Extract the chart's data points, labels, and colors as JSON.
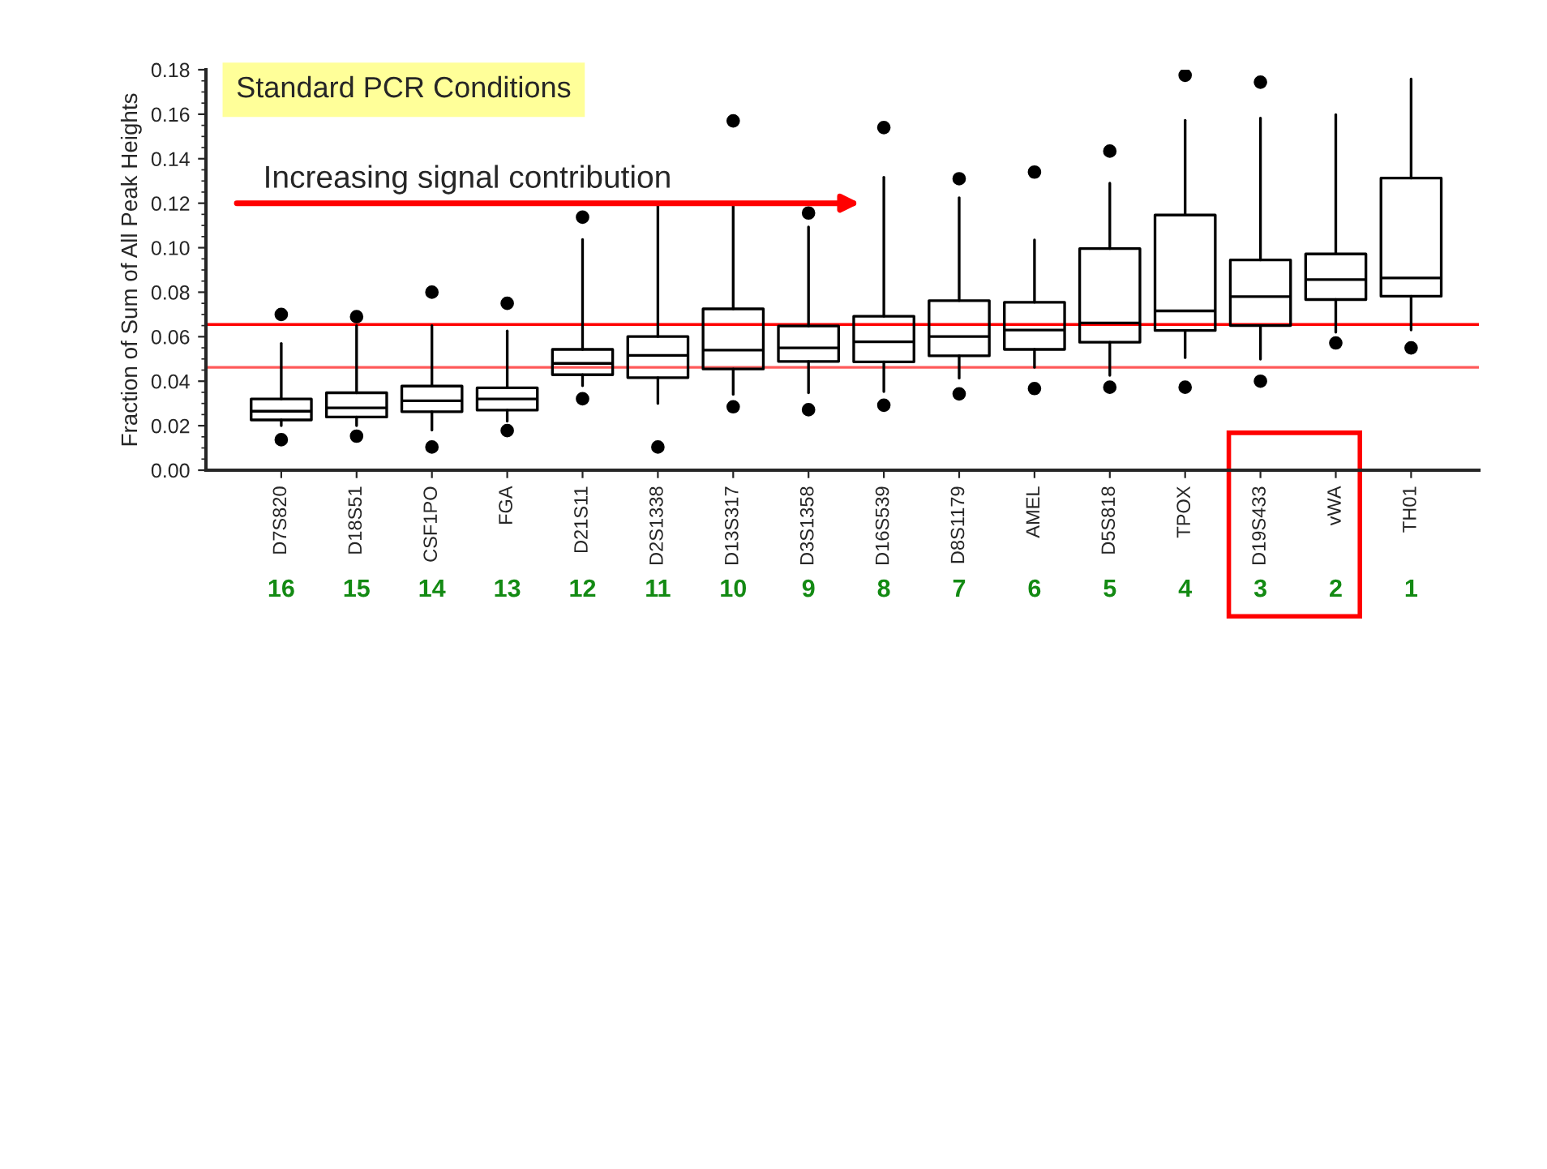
{
  "chart_data": {
    "type": "box",
    "title": "Standard PCR Conditions",
    "ylabel": "Fraction of Sum of All Peak Heights",
    "categories": [
      "D7S820",
      "D18S51",
      "CSF1PO",
      "FGA",
      "D21S11",
      "D2S1338",
      "D13S317",
      "D3S1358",
      "D16S539",
      "D8S1179",
      "AMEL",
      "D5S818",
      "TPOX",
      "D19S433",
      "vWA",
      "TH01"
    ],
    "boxes": [
      {
        "low": 0.02,
        "q1": 0.0226,
        "median": 0.0265,
        "q3": 0.032,
        "high": 0.057,
        "outliers": [
          0.0137,
          0.07
        ]
      },
      {
        "low": 0.02,
        "q1": 0.0239,
        "median": 0.028,
        "q3": 0.0348,
        "high": 0.065,
        "outliers": [
          0.0153,
          0.069
        ]
      },
      {
        "low": 0.018,
        "q1": 0.0263,
        "median": 0.0312,
        "q3": 0.0378,
        "high": 0.065,
        "outliers": [
          0.0104,
          0.08
        ]
      },
      {
        "low": 0.022,
        "q1": 0.027,
        "median": 0.032,
        "q3": 0.037,
        "high": 0.0626,
        "outliers": [
          0.0178,
          0.075
        ]
      },
      {
        "low": 0.038,
        "q1": 0.0429,
        "median": 0.048,
        "q3": 0.0543,
        "high": 0.1037,
        "outliers": [
          0.0321,
          0.1137
        ]
      },
      {
        "low": 0.03,
        "q1": 0.0416,
        "median": 0.0516,
        "q3": 0.0601,
        "high": 0.12,
        "outliers": [
          0.0104
        ]
      },
      {
        "low": 0.0341,
        "q1": 0.0455,
        "median": 0.054,
        "q3": 0.0725,
        "high": 0.12,
        "outliers": [
          0.0285,
          0.157
        ]
      },
      {
        "low": 0.0348,
        "q1": 0.0489,
        "median": 0.055,
        "q3": 0.0648,
        "high": 0.1093,
        "outliers": [
          0.0272,
          0.1156
        ]
      },
      {
        "low": 0.0353,
        "q1": 0.0487,
        "median": 0.0577,
        "q3": 0.0692,
        "high": 0.1317,
        "outliers": [
          0.0292,
          0.154
        ]
      },
      {
        "low": 0.0414,
        "q1": 0.0514,
        "median": 0.0601,
        "q3": 0.0762,
        "high": 0.1225,
        "outliers": [
          0.0343,
          0.131
        ]
      },
      {
        "low": 0.0462,
        "q1": 0.0543,
        "median": 0.063,
        "q3": 0.0755,
        "high": 0.1035,
        "outliers": [
          0.0367,
          0.134
        ]
      },
      {
        "low": 0.0426,
        "q1": 0.0575,
        "median": 0.0662,
        "q3": 0.0996,
        "high": 0.129,
        "outliers": [
          0.0373,
          0.1434
        ]
      },
      {
        "low": 0.0506,
        "q1": 0.0628,
        "median": 0.0716,
        "q3": 0.1147,
        "high": 0.1573,
        "outliers": [
          0.0373,
          0.1775
        ]
      },
      {
        "low": 0.0499,
        "q1": 0.065,
        "median": 0.078,
        "q3": 0.0945,
        "high": 0.1583,
        "outliers": [
          0.04,
          0.1744
        ]
      },
      {
        "low": 0.062,
        "q1": 0.0767,
        "median": 0.0857,
        "q3": 0.0972,
        "high": 0.1598,
        "outliers": [
          0.0572
        ]
      },
      {
        "low": 0.063,
        "q1": 0.0782,
        "median": 0.0864,
        "q3": 0.1313,
        "high": 0.1758,
        "outliers": [
          0.055
        ]
      }
    ],
    "ylim": [
      0,
      0.18
    ],
    "yticks": [
      {
        "value": 0,
        "label": "0.00"
      },
      {
        "value": 0.02,
        "label": "0.02"
      },
      {
        "value": 0.04,
        "label": "0.04"
      },
      {
        "value": 0.06,
        "label": "0.06"
      },
      {
        "value": 0.08,
        "label": "0.08"
      },
      {
        "value": 0.1,
        "label": "0.10"
      },
      {
        "value": 0.12,
        "label": "0.12"
      },
      {
        "value": 0.14,
        "label": "0.14"
      },
      {
        "value": 0.16,
        "label": "0.16"
      },
      {
        "value": 0.18,
        "label": "0.18"
      }
    ],
    "ref_lines": [
      {
        "axis": "y",
        "value": 0.0655,
        "color": "#ff0000"
      },
      {
        "axis": "y",
        "value": 0.0462,
        "color": "#ff5a5a"
      }
    ],
    "annotations": [
      "Increasing signal contribution",
      "16",
      "15",
      "14",
      "13",
      "12",
      "11",
      "10",
      "9",
      "8",
      "7",
      "6",
      "5",
      "4",
      "3",
      "2",
      "1"
    ],
    "grid": false
  }
}
